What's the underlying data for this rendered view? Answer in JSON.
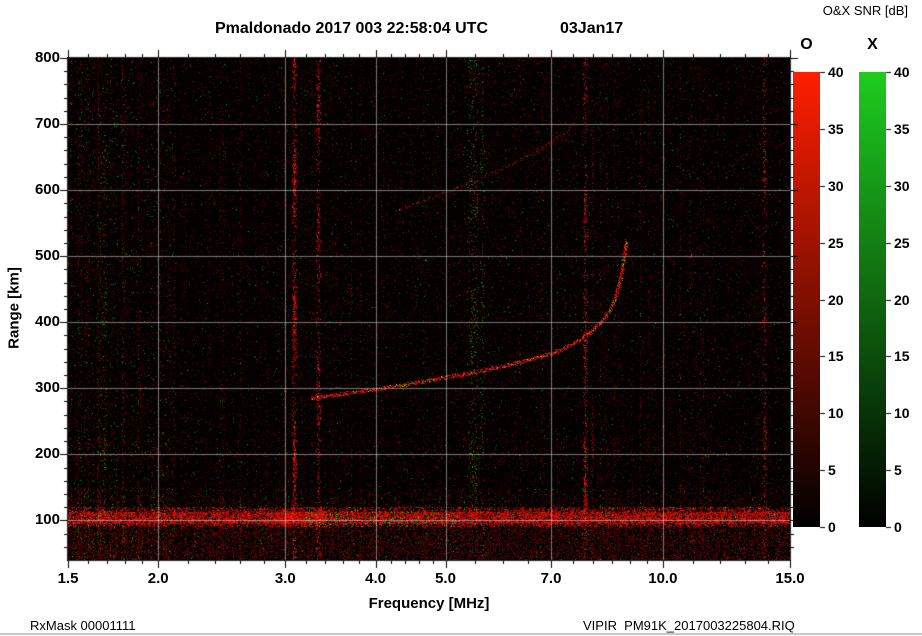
{
  "header": {
    "title": "Pmaldonado 2017 003 22:58:04 UTC",
    "date": "03Jan17",
    "colorbar_title": "O&X SNR [dB]"
  },
  "footer": {
    "left": "RxMask 00001111",
    "right": "VIPIR  PM91K_2017003225804.RIQ"
  },
  "chart_data": {
    "type": "heatmap",
    "subtype": "ionogram",
    "xlabel": "Frequency [MHz]",
    "ylabel": "Range [km]",
    "x_scale": "log",
    "xlim": [
      1.5,
      15
    ],
    "ylim": [
      40,
      800
    ],
    "x_ticks": [
      1.5,
      2,
      3,
      4,
      5,
      7,
      10,
      15
    ],
    "x_tick_labels": [
      "1.5",
      "2.0",
      "3.0",
      "4.0",
      "5.0",
      "7.0",
      "10.0",
      "15.0"
    ],
    "x_minor_ticks": [
      1.6,
      1.7,
      1.8,
      1.9,
      2.2,
      2.4,
      2.6,
      2.8,
      3.2,
      3.4,
      3.6,
      3.8,
      4.2,
      4.4,
      4.6,
      4.8,
      5.5,
      6,
      6.5,
      7.5,
      8,
      8.5,
      9,
      9.5,
      11,
      12,
      13,
      14
    ],
    "y_ticks": [
      100,
      200,
      300,
      400,
      500,
      600,
      700,
      800
    ],
    "y_minor_step": 20,
    "grid_x": [
      2,
      3,
      4,
      5,
      7,
      10
    ],
    "grid_y": [
      100,
      200,
      300,
      400,
      500,
      600,
      700
    ],
    "background_color": "#050101",
    "colorbars": [
      {
        "label": "O",
        "min": 0,
        "max": 40,
        "unit": "dB",
        "ticks": [
          0,
          5,
          10,
          15,
          20,
          25,
          30,
          35,
          40
        ],
        "bottom_color": "#000000",
        "top_color": "#ff1e00"
      },
      {
        "label": "X",
        "min": 0,
        "max": 40,
        "unit": "dB",
        "ticks": [
          0,
          5,
          10,
          15,
          20,
          25,
          30,
          35,
          40
        ],
        "bottom_color": "#000000",
        "top_color": "#1ecc1e"
      }
    ],
    "features": {
      "e_region_band_km": [
        92,
        120
      ],
      "critical_frequency_mhz": 8.9,
      "f_trace_o_mode": [
        [
          3.25,
          286
        ],
        [
          3.5,
          290
        ],
        [
          4.0,
          299
        ],
        [
          4.5,
          308
        ],
        [
          5.0,
          317
        ],
        [
          5.5,
          325
        ],
        [
          6.0,
          334
        ],
        [
          6.5,
          343
        ],
        [
          7.0,
          353
        ],
        [
          7.3,
          361
        ],
        [
          7.6,
          371
        ],
        [
          7.9,
          384
        ],
        [
          8.2,
          400
        ],
        [
          8.45,
          420
        ],
        [
          8.6,
          440
        ],
        [
          8.72,
          463
        ],
        [
          8.8,
          488
        ],
        [
          8.85,
          508
        ],
        [
          8.88,
          524
        ]
      ],
      "second_hop_trace": [
        [
          4.3,
          572
        ],
        [
          4.7,
          585
        ],
        [
          5.0,
          597
        ],
        [
          5.5,
          615
        ],
        [
          6.0,
          634
        ],
        [
          6.5,
          653
        ],
        [
          7.0,
          673
        ],
        [
          7.3,
          687
        ],
        [
          7.55,
          701
        ]
      ],
      "rfi": [
        {
          "f": 1.68,
          "w": 3,
          "p": 0.1,
          "green": true
        },
        {
          "f": 1.8,
          "w": 2,
          "p": 0.08
        },
        {
          "f": 2.1,
          "w": 1,
          "p": 0.1
        },
        {
          "f": 3.08,
          "w": 2,
          "p": 0.5,
          "bright": true
        },
        {
          "f": 3.33,
          "w": 2,
          "p": 0.34,
          "bright": true
        },
        {
          "f": 5.45,
          "w": 6,
          "p": 0.2,
          "green": true
        },
        {
          "f": 5.62,
          "w": 2,
          "p": 0.16,
          "green": true
        },
        {
          "f": 6.35,
          "w": 1,
          "p": 0.07
        },
        {
          "f": 7.8,
          "w": 2,
          "p": 0.28,
          "bright": true
        },
        {
          "f": 7.97,
          "w": 1,
          "p": 0.14
        },
        {
          "f": 10.9,
          "w": 1,
          "p": 0.07
        },
        {
          "f": 13.8,
          "w": 2,
          "p": 0.2,
          "bright": true
        }
      ]
    }
  }
}
